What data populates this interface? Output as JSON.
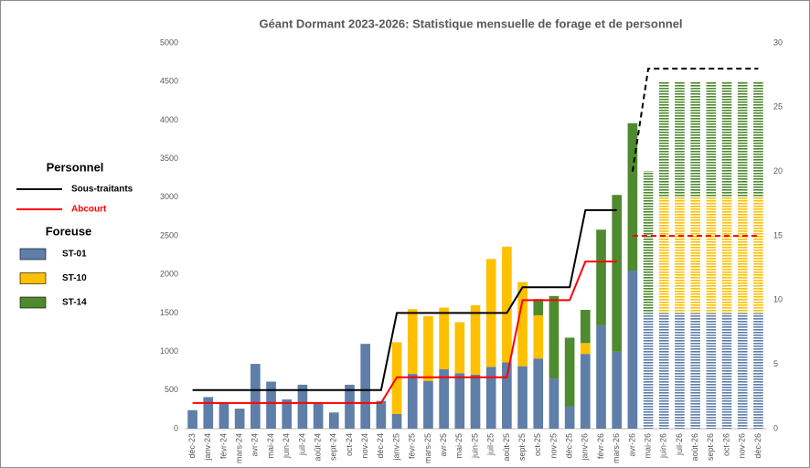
{
  "chart_data": {
    "type": "stacked-bar-line",
    "title": "Géant Dormant 2023-2026: Statistique mensuelle de forage et de personnel",
    "legend_titles": [
      "Personnel",
      "Foreuse"
    ],
    "categories": [
      "déc-23",
      "janv-24",
      "févr-24",
      "mars-24",
      "avr-24",
      "mai-24",
      "juin-24",
      "juil-24",
      "août-24",
      "sept-24",
      "oct-24",
      "nov-24",
      "déc-24",
      "janv-25",
      "févr-25",
      "mars-25",
      "avr-25",
      "mai-25",
      "juin-25",
      "juil-25",
      "août-25",
      "sept-25",
      "oct-25",
      "nov-25",
      "déc-25",
      "janv-26",
      "févr-26",
      "mars-26",
      "avr-26",
      "mai-26",
      "juin-26",
      "juil-26",
      "août-26",
      "sept-26",
      "oct-26",
      "nov-26",
      "déc-26"
    ],
    "hatched": [
      false,
      false,
      false,
      false,
      false,
      false,
      false,
      false,
      false,
      false,
      false,
      false,
      false,
      false,
      false,
      false,
      false,
      false,
      false,
      false,
      false,
      false,
      false,
      false,
      false,
      false,
      false,
      false,
      false,
      true,
      true,
      true,
      true,
      true,
      true,
      true,
      true
    ],
    "series": [
      {
        "name": "ST-01",
        "color": "#5f7ea8",
        "values": [
          240,
          410,
          330,
          260,
          840,
          610,
          380,
          570,
          340,
          210,
          570,
          1100,
          360,
          190,
          710,
          620,
          770,
          720,
          700,
          800,
          860,
          810,
          910,
          650,
          290,
          970,
          1340,
          1000,
          2050,
          1500,
          1500,
          1500,
          1500,
          1500,
          1500,
          1500,
          1500
        ]
      },
      {
        "name": "ST-10",
        "color": "#ffc000",
        "values": [
          0,
          0,
          0,
          0,
          0,
          0,
          0,
          0,
          0,
          0,
          0,
          0,
          0,
          930,
          840,
          840,
          800,
          660,
          900,
          1400,
          1500,
          1090,
          560,
          0,
          0,
          140,
          0,
          0,
          0,
          0,
          1500,
          1500,
          1500,
          1500,
          1500,
          1500,
          1500
        ]
      },
      {
        "name": "ST-14",
        "color": "#4e8a2f",
        "values": [
          0,
          0,
          0,
          0,
          0,
          0,
          0,
          0,
          0,
          0,
          0,
          0,
          0,
          0,
          0,
          0,
          0,
          0,
          0,
          0,
          0,
          0,
          210,
          1070,
          890,
          430,
          1240,
          2030,
          1910,
          1840,
          1500,
          1500,
          1500,
          1500,
          1500,
          1500,
          1500
        ]
      },
      {
        "name": "Sous-traitants",
        "color": "#000000",
        "axis": "y2",
        "type": "line",
        "values": [
          3,
          3,
          3,
          3,
          3,
          3,
          3,
          3,
          3,
          3,
          3,
          3,
          3,
          9,
          9,
          9,
          9,
          9,
          9,
          9,
          9,
          11,
          11,
          11,
          11,
          17,
          17,
          17,
          null,
          null,
          null,
          null,
          null,
          null,
          null,
          null,
          null
        ],
        "projection": [
          null,
          null,
          null,
          null,
          null,
          null,
          null,
          null,
          null,
          null,
          null,
          null,
          null,
          null,
          null,
          null,
          null,
          null,
          null,
          null,
          null,
          null,
          null,
          null,
          null,
          null,
          null,
          null,
          20,
          28,
          28,
          28,
          28,
          28,
          28,
          28,
          28
        ]
      },
      {
        "name": "Abcourt",
        "color": "#ff0000",
        "axis": "y2",
        "type": "line",
        "values": [
          2,
          2,
          2,
          2,
          2,
          2,
          2,
          2,
          2,
          2,
          2,
          2,
          2,
          4,
          4,
          4,
          4,
          4,
          4,
          4,
          4,
          10,
          10,
          10,
          10,
          13,
          13,
          13,
          null,
          null,
          null,
          null,
          null,
          null,
          null,
          null,
          null
        ],
        "projection": [
          null,
          null,
          null,
          null,
          null,
          null,
          null,
          null,
          null,
          null,
          null,
          null,
          null,
          null,
          null,
          null,
          null,
          null,
          null,
          null,
          null,
          null,
          null,
          null,
          null,
          null,
          null,
          null,
          15,
          15,
          15,
          15,
          15,
          15,
          15,
          15,
          15
        ]
      }
    ],
    "ylim": [
      0,
      5000
    ],
    "yticks": [
      0,
      500,
      1000,
      1500,
      2000,
      2500,
      3000,
      3500,
      4000,
      4500,
      5000
    ],
    "y2lim": [
      0,
      30
    ],
    "y2ticks": [
      0,
      5,
      10,
      15,
      20,
      25,
      30
    ],
    "legend": "left"
  }
}
